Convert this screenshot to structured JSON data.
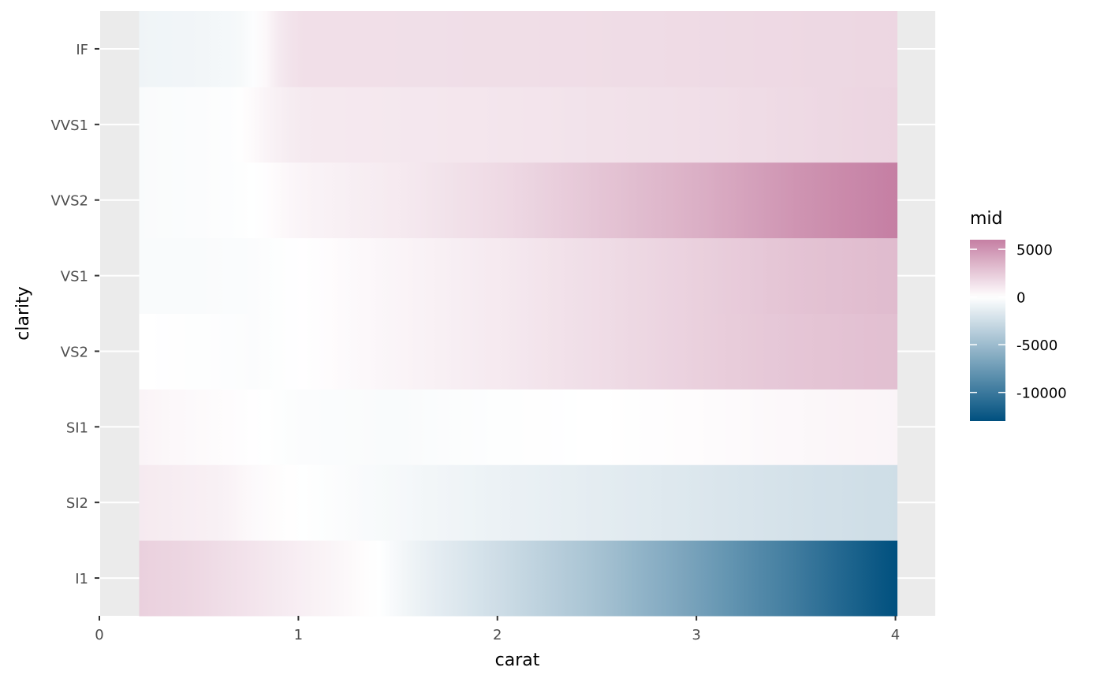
{
  "chart_data": {
    "type": "heatmap",
    "title": "",
    "xlabel": "carat",
    "ylabel": "clarity",
    "xlim": [
      0,
      4.2
    ],
    "x_ticks": [
      0,
      1,
      2,
      3,
      4
    ],
    "x_tick_labels": [
      "0",
      "1",
      "2",
      "3",
      "4"
    ],
    "x_range": [
      0.2,
      4.01
    ],
    "categories": [
      "I1",
      "SI2",
      "SI1",
      "VS2",
      "VS1",
      "VVS2",
      "VVS1",
      "IF"
    ],
    "grid": true,
    "legend": {
      "title": "mid",
      "placement": "right",
      "min": -13000,
      "max": 6000,
      "breaks": [
        5000,
        0,
        -5000,
        -10000
      ],
      "break_labels": [
        "5000",
        "0",
        "-5000",
        "-10000"
      ],
      "low_color": "#00507f",
      "mid_color": "#ffffff",
      "high_color": "#c57fa3"
    },
    "series": [
      {
        "category": "I1",
        "x": [
          0.2,
          0.5,
          1.0,
          1.4,
          1.6,
          2.0,
          2.5,
          3.0,
          3.5,
          4.0
        ],
        "values": [
          2200,
          1800,
          800,
          0,
          -1000,
          -2500,
          -4500,
          -7000,
          -9800,
          -13000
        ]
      },
      {
        "category": "SI2",
        "x": [
          0.2,
          0.6,
          0.8,
          1.0,
          1.5,
          2.0,
          2.5,
          3.0,
          3.5,
          4.0
        ],
        "values": [
          1000,
          700,
          200,
          0,
          -500,
          -1000,
          -1400,
          -1800,
          -2200,
          -2500
        ]
      },
      {
        "category": "SI1",
        "x": [
          0.2,
          0.5,
          0.8,
          1.0,
          1.5,
          2.0,
          2.5,
          3.0,
          3.5,
          4.0
        ],
        "values": [
          500,
          250,
          0,
          -200,
          -300,
          -100,
          0,
          150,
          350,
          500
        ]
      },
      {
        "category": "VS2",
        "x": [
          0.2,
          0.5,
          0.8,
          1.0,
          1.5,
          2.0,
          2.5,
          3.0,
          3.5,
          4.0
        ],
        "values": [
          0,
          -100,
          -200,
          0,
          500,
          1000,
          1600,
          2200,
          2700,
          3000
        ]
      },
      {
        "category": "VS1",
        "x": [
          0.2,
          0.5,
          0.8,
          1.0,
          1.5,
          2.0,
          2.5,
          3.0,
          3.5,
          4.0
        ],
        "values": [
          -300,
          -300,
          -200,
          0,
          500,
          1000,
          1600,
          2200,
          2800,
          3200
        ]
      },
      {
        "category": "VVS2",
        "x": [
          0.2,
          0.5,
          0.7,
          0.8,
          1.0,
          1.5,
          2.0,
          2.5,
          3.0,
          3.5,
          4.0
        ],
        "values": [
          -300,
          -200,
          -100,
          0,
          500,
          1000,
          1700,
          2700,
          3700,
          5000,
          6000
        ]
      },
      {
        "category": "VVS1",
        "x": [
          0.2,
          0.5,
          0.7,
          0.8,
          1.0,
          1.5,
          2.0,
          2.5,
          3.0,
          3.5,
          4.0
        ],
        "values": [
          -300,
          -200,
          -100,
          400,
          1000,
          1100,
          1200,
          1350,
          1500,
          1750,
          2000
        ]
      },
      {
        "category": "IF",
        "x": [
          0.2,
          0.5,
          0.7,
          0.8,
          0.9,
          1.0,
          1.5,
          2.0,
          2.5,
          3.0,
          3.5,
          4.0
        ],
        "values": [
          -800,
          -700,
          -500,
          0,
          1000,
          1500,
          1500,
          1550,
          1600,
          1700,
          1800,
          1900
        ]
      }
    ]
  }
}
